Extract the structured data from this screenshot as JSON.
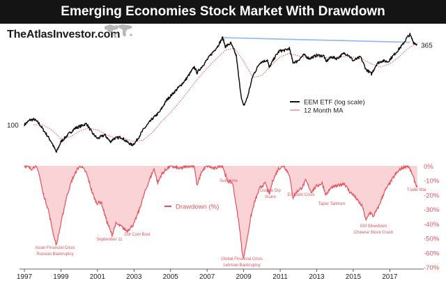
{
  "header": {
    "title": "Emerging Economies Stock Market With Drawdown",
    "brand": "TheAtlasInvestor.com"
  },
  "colors": {
    "price": "#111111",
    "ma": "#e8505b",
    "drawdown": "#e8505b",
    "prior_high": "#8fb7e8"
  },
  "chart_data": [
    {
      "type": "line",
      "panel": "price",
      "scale": "log",
      "ylim": [
        55,
        480
      ],
      "x_unit": "year",
      "series": [
        {
          "name": "EEM ETF (log scale)",
          "x": [
            1997.0,
            1997.3,
            1997.55,
            1997.8,
            1998.2,
            1998.5,
            1998.75,
            1999.0,
            1999.5,
            1999.8,
            2000.1,
            2000.4,
            2000.7,
            2001.0,
            2001.4,
            2001.7,
            2001.9,
            2002.3,
            2002.6,
            2002.9,
            2003.1,
            2003.5,
            2004.0,
            2004.4,
            2004.8,
            2005.3,
            2005.8,
            2006.3,
            2006.45,
            2006.8,
            2007.2,
            2007.6,
            2007.85,
            2008.0,
            2008.3,
            2008.6,
            2008.75,
            2008.9,
            2009.0,
            2009.2,
            2009.5,
            2009.9,
            2010.3,
            2010.4,
            2010.7,
            2010.95,
            2011.3,
            2011.5,
            2011.7,
            2011.9,
            2012.3,
            2012.6,
            2013.0,
            2013.4,
            2013.5,
            2013.8,
            2014.1,
            2014.5,
            2014.7,
            2015.0,
            2015.4,
            2015.7,
            2016.0,
            2016.3,
            2016.6,
            2016.9,
            2017.3,
            2017.7,
            2017.95,
            2018.1,
            2018.3,
            2018.5
          ],
          "values": [
            100,
            108,
            109,
            102,
            86,
            75,
            64,
            76,
            88,
            95,
            98,
            102,
            88,
            80,
            85,
            76,
            80,
            82,
            76,
            72,
            76,
            92,
            110,
            123,
            150,
            175,
            205,
            255,
            232,
            265,
            310,
            360,
            410,
            355,
            375,
            305,
            205,
            150,
            135,
            155,
            220,
            275,
            285,
            252,
            298,
            330,
            335,
            345,
            275,
            278,
            310,
            292,
            308,
            305,
            278,
            300,
            292,
            318,
            312,
            282,
            300,
            245,
            228,
            270,
            282,
            278,
            318,
            365,
            412,
            430,
            380,
            365
          ]
        },
        {
          "name": "12 Month MA",
          "x": [
            1997.5,
            1998.0,
            1998.5,
            1999.0,
            1999.5,
            2000.0,
            2000.5,
            2001.0,
            2001.5,
            2002.0,
            2002.5,
            2003.0,
            2003.5,
            2004.0,
            2004.5,
            2005.0,
            2005.5,
            2006.0,
            2006.5,
            2007.0,
            2007.5,
            2008.0,
            2008.5,
            2009.0,
            2009.5,
            2010.0,
            2010.5,
            2011.0,
            2011.5,
            2012.0,
            2012.5,
            2013.0,
            2013.5,
            2014.0,
            2014.5,
            2015.0,
            2015.5,
            2016.0,
            2016.5,
            2017.0,
            2017.5,
            2018.0,
            2018.5
          ],
          "values": [
            100,
            100,
            92,
            80,
            82,
            90,
            95,
            92,
            85,
            80,
            80,
            76,
            78,
            88,
            105,
            122,
            145,
            175,
            212,
            250,
            290,
            335,
            345,
            280,
            215,
            222,
            262,
            300,
            318,
            305,
            296,
            300,
            298,
            298,
            302,
            300,
            290,
            268,
            255,
            268,
            300,
            345,
            375
          ]
        },
        {
          "name": "Prior High",
          "x": [
            2007.85,
            2018.1
          ],
          "values": [
            410,
            380
          ]
        }
      ],
      "labels": [
        {
          "text": "100"
        },
        {
          "text": "365"
        }
      ],
      "legend": [
        "EEM ETF (log scale)",
        "12 Month MA"
      ],
      "legend_position": "center-right"
    },
    {
      "type": "area",
      "panel": "drawdown",
      "ylim": [
        -70,
        0
      ],
      "yticks": [
        "0%",
        "-10%",
        "-20%",
        "-30%",
        "-40%",
        "-50%",
        "-60%",
        "-70%"
      ],
      "xticks": [
        "1997",
        "1999",
        "2001",
        "2003",
        "2005",
        "2007",
        "2009",
        "2011",
        "2013",
        "2015",
        "2017"
      ],
      "series": [
        {
          "name": "Drawdown (%)",
          "x": [
            1997.0,
            1997.4,
            1997.6,
            1997.8,
            1998.0,
            1998.3,
            1998.6,
            1998.75,
            1999.0,
            1999.3,
            1999.6,
            1999.9,
            2000.1,
            2000.4,
            2000.7,
            2000.95,
            2001.2,
            2001.5,
            2001.8,
            2002.0,
            2002.3,
            2002.6,
            2002.8,
            2003.0,
            2003.3,
            2003.6,
            2003.9,
            2004.1,
            2004.3,
            2004.5,
            2004.8,
            2005.0,
            2005.5,
            2006.0,
            2006.3,
            2006.45,
            2006.7,
            2007.0,
            2007.4,
            2007.7,
            2007.85,
            2008.1,
            2008.4,
            2008.6,
            2008.8,
            2008.9,
            2009.0,
            2009.2,
            2009.4,
            2009.6,
            2009.9,
            2010.2,
            2010.4,
            2010.6,
            2010.9,
            2011.2,
            2011.5,
            2011.7,
            2011.9,
            2012.2,
            2012.4,
            2012.7,
            2013.0,
            2013.3,
            2013.5,
            2013.8,
            2014.1,
            2014.5,
            2014.8,
            2015.0,
            2015.3,
            2015.5,
            2015.7,
            2015.9,
            2016.1,
            2016.4,
            2016.7,
            2017.0,
            2017.3,
            2017.6,
            2017.9,
            2018.0,
            2018.2,
            2018.4,
            2018.5
          ],
          "values": [
            0,
            -2,
            0,
            -5,
            -18,
            -30,
            -48,
            -55,
            -40,
            -22,
            -10,
            -2,
            0,
            -5,
            -18,
            -26,
            -25,
            -38,
            -48,
            -40,
            -42,
            -45,
            -43,
            -40,
            -30,
            -18,
            -8,
            -2,
            -12,
            -6,
            -2,
            0,
            -2,
            0,
            0,
            -14,
            -4,
            0,
            -2,
            0,
            0,
            -10,
            -12,
            -28,
            -45,
            -58,
            -64,
            -50,
            -35,
            -25,
            -15,
            -12,
            -20,
            -10,
            -2,
            0,
            -6,
            -22,
            -18,
            -15,
            -10,
            -18,
            -14,
            -12,
            -20,
            -15,
            -14,
            -12,
            -18,
            -20,
            -25,
            -28,
            -38,
            -32,
            -35,
            -28,
            -18,
            -12,
            -6,
            -2,
            0,
            0,
            -5,
            -12,
            -15
          ]
        }
      ],
      "annotations": [
        {
          "lines": [
            "Asian Financial Crisis",
            "Russian Bankruptcy"
          ]
        },
        {
          "lines": [
            "September 11"
          ]
        },
        {
          "lines": [
            "Dot Com Bust"
          ]
        },
        {
          "lines": [
            "Subprime"
          ]
        },
        {
          "lines": [
            "Global Financial Crisis",
            "Lehman Bankruptcy"
          ]
        },
        {
          "lines": [
            "Double Dip",
            "Scare"
          ]
        },
        {
          "lines": [
            "EU Debt Crisis"
          ]
        },
        {
          "lines": [
            "Taper Tantrum"
          ]
        },
        {
          "lines": [
            "EM Slowdown",
            "Chinese Stock Crash"
          ]
        },
        {
          "lines": [
            "Trade War"
          ]
        }
      ],
      "legend": [
        "Drawdown (%)"
      ],
      "legend_position": "center-left"
    }
  ]
}
